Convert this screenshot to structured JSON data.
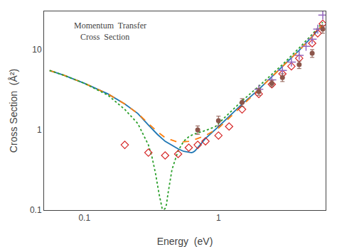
{
  "chart_data": {
    "type": "line",
    "title": "Momentum  Transfer\n   Cross  Section",
    "x_label": "Energy  (eV)",
    "y_label": "Cross Section  (Å²)",
    "log": true,
    "grid": false,
    "xlim": [
      0.05,
      6.3
    ],
    "ylim": [
      0.1,
      30
    ],
    "xticks": [
      0.1,
      1
    ],
    "yticks": [
      0.1,
      1,
      10
    ],
    "series": [
      {
        "type": "line",
        "line_style": "solid",
        "x": [
          0.055,
          0.07,
          0.1,
          0.15,
          0.2,
          0.25,
          0.3,
          0.35,
          0.4,
          0.5,
          0.55,
          0.6,
          0.62,
          0.63,
          0.64,
          0.65,
          0.67,
          0.7,
          0.75,
          0.8,
          1.0,
          1.5,
          2.0,
          3.0,
          4.0,
          5.0,
          6.0
        ],
        "values": [
          5.5,
          4.8,
          3.8,
          2.8,
          2.1,
          1.6,
          1.15,
          0.88,
          0.72,
          0.58,
          0.54,
          0.53,
          0.52,
          0.52,
          0.525,
          0.53,
          0.55,
          0.6,
          0.68,
          0.78,
          1.1,
          2.1,
          3.2,
          6.2,
          9.8,
          14.5,
          20.5
        ]
      },
      {
        "type": "line",
        "line_style": "dashed",
        "x": [
          0.055,
          0.07,
          0.1,
          0.15,
          0.2,
          0.25,
          0.3,
          0.35,
          0.4,
          0.5,
          0.6,
          0.7,
          0.8,
          1.0,
          1.5,
          2.0,
          3.0,
          4.0,
          5.0,
          6.0
        ],
        "values": [
          5.5,
          4.8,
          3.8,
          2.8,
          2.1,
          1.6,
          1.2,
          0.95,
          0.8,
          0.7,
          0.72,
          0.78,
          0.85,
          1.05,
          2.0,
          3.2,
          6.2,
          9.8,
          14.5,
          20.5
        ]
      },
      {
        "type": "line",
        "line_style": "dotted",
        "x": [
          0.055,
          0.07,
          0.1,
          0.15,
          0.2,
          0.25,
          0.3,
          0.32,
          0.34,
          0.36,
          0.38,
          0.39,
          0.4,
          0.405,
          0.41,
          0.42,
          0.45,
          0.5,
          0.55,
          0.6,
          0.65,
          0.7,
          0.75,
          0.8,
          0.85,
          0.9,
          0.95,
          1.0,
          1.5,
          2.0,
          3.0,
          4.0,
          5.0,
          6.0
        ],
        "values": [
          5.5,
          4.8,
          3.8,
          2.7,
          1.8,
          1.2,
          0.65,
          0.45,
          0.28,
          0.16,
          0.105,
          0.101,
          0.105,
          0.11,
          0.12,
          0.16,
          0.32,
          0.55,
          0.72,
          0.82,
          0.88,
          0.92,
          0.95,
          0.98,
          1.02,
          1.05,
          1.1,
          1.2,
          2.3,
          3.5,
          6.5,
          10.5,
          15.5,
          22.0
        ]
      },
      {
        "type": "scatter",
        "marker": "diamond-open",
        "x": [
          0.2,
          0.3,
          0.4,
          0.5,
          0.6,
          0.7,
          0.8,
          1.0,
          1.2,
          1.5,
          2.0,
          2.5,
          3.0,
          3.5,
          4.0,
          5.0,
          5.5,
          6.0
        ],
        "values": [
          0.65,
          0.52,
          0.48,
          0.5,
          0.6,
          0.65,
          0.72,
          0.85,
          1.1,
          1.8,
          2.8,
          3.7,
          5.0,
          6.2,
          7.8,
          12.0,
          16.0,
          21.0
        ]
      },
      {
        "type": "scatter",
        "marker": "cross",
        "x": [
          2.0,
          2.5,
          3.0,
          3.5,
          4.0,
          4.5,
          5.0,
          5.5,
          6.0
        ],
        "values": [
          3.2,
          4.2,
          5.5,
          7.0,
          8.5,
          11.0,
          13.5,
          18.0,
          27.0
        ]
      },
      {
        "type": "scatter",
        "marker": "circle",
        "x": [
          0.7,
          1.0,
          1.5,
          2.0,
          2.5,
          3.0,
          4.0,
          5.0,
          6.0
        ],
        "values": [
          1.0,
          1.3,
          2.2,
          3.0,
          3.8,
          4.5,
          6.5,
          9.0,
          18.0
        ],
        "yerr_lo": [
          0.12,
          0.18,
          0.25,
          0.3,
          0.35,
          0.5,
          0.7,
          1.0,
          2.0
        ],
        "yerr_hi": [
          0.12,
          0.18,
          0.25,
          0.3,
          0.35,
          0.5,
          0.7,
          1.0,
          2.0
        ]
      }
    ]
  }
}
